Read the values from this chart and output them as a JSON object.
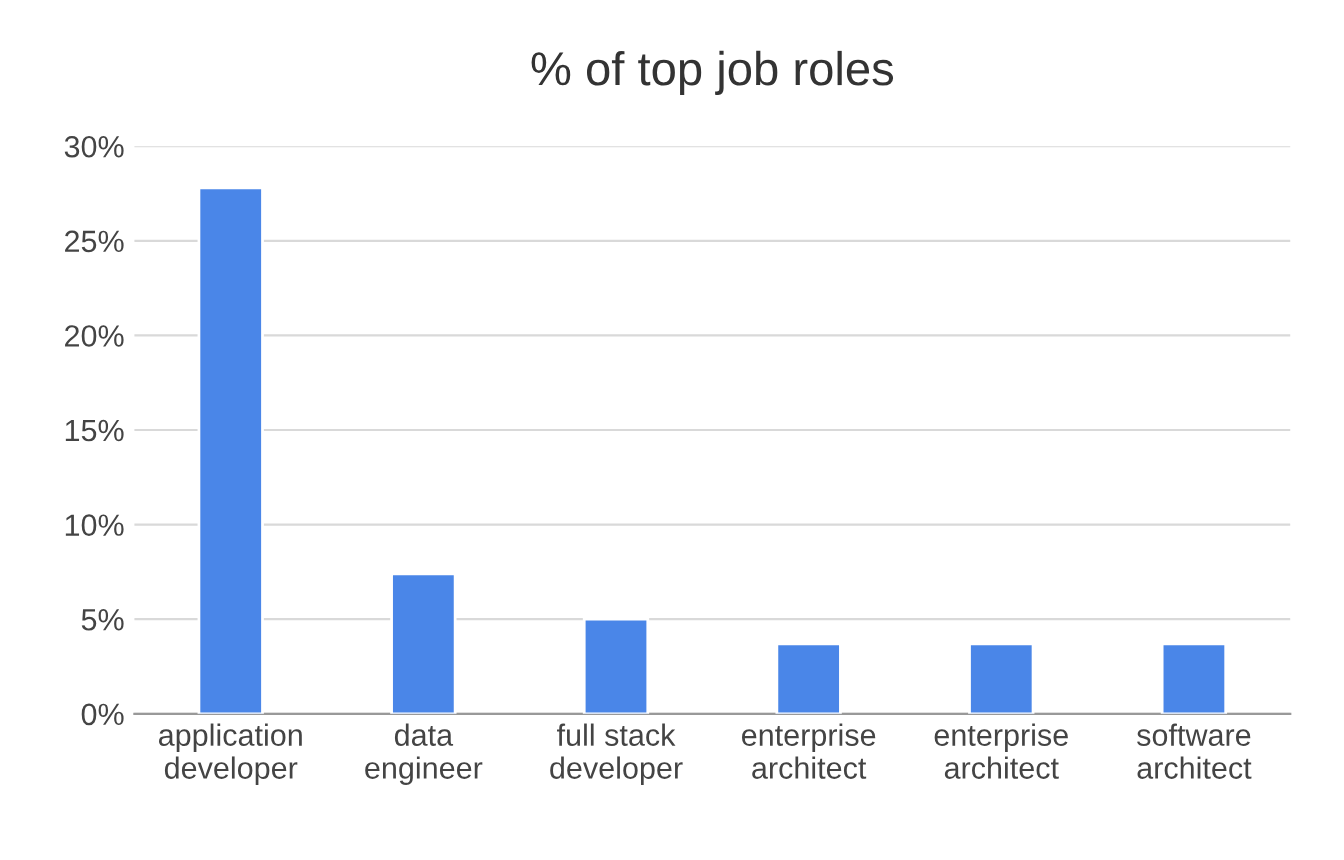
{
  "chart_data": {
    "type": "bar",
    "title": "% of top job roles",
    "categories": [
      "application\ndeveloper",
      "data\nengineer",
      "full stack\ndeveloper",
      "enterprise\narchitect",
      "enterprise\narchitect",
      "software\narchitect"
    ],
    "values": [
      27.8,
      7.4,
      5.0,
      3.7,
      3.7,
      3.7
    ],
    "color": "#4a86e8",
    "ylim": [
      0,
      30
    ],
    "yticks": [
      {
        "value": 0,
        "label": "0%"
      },
      {
        "value": 5,
        "label": "5%"
      },
      {
        "value": 10,
        "label": "10%"
      },
      {
        "value": 15,
        "label": "15%"
      },
      {
        "value": 20,
        "label": "20%"
      },
      {
        "value": 25,
        "label": "25%"
      },
      {
        "value": 30,
        "label": "30%"
      }
    ],
    "grid": "y"
  }
}
